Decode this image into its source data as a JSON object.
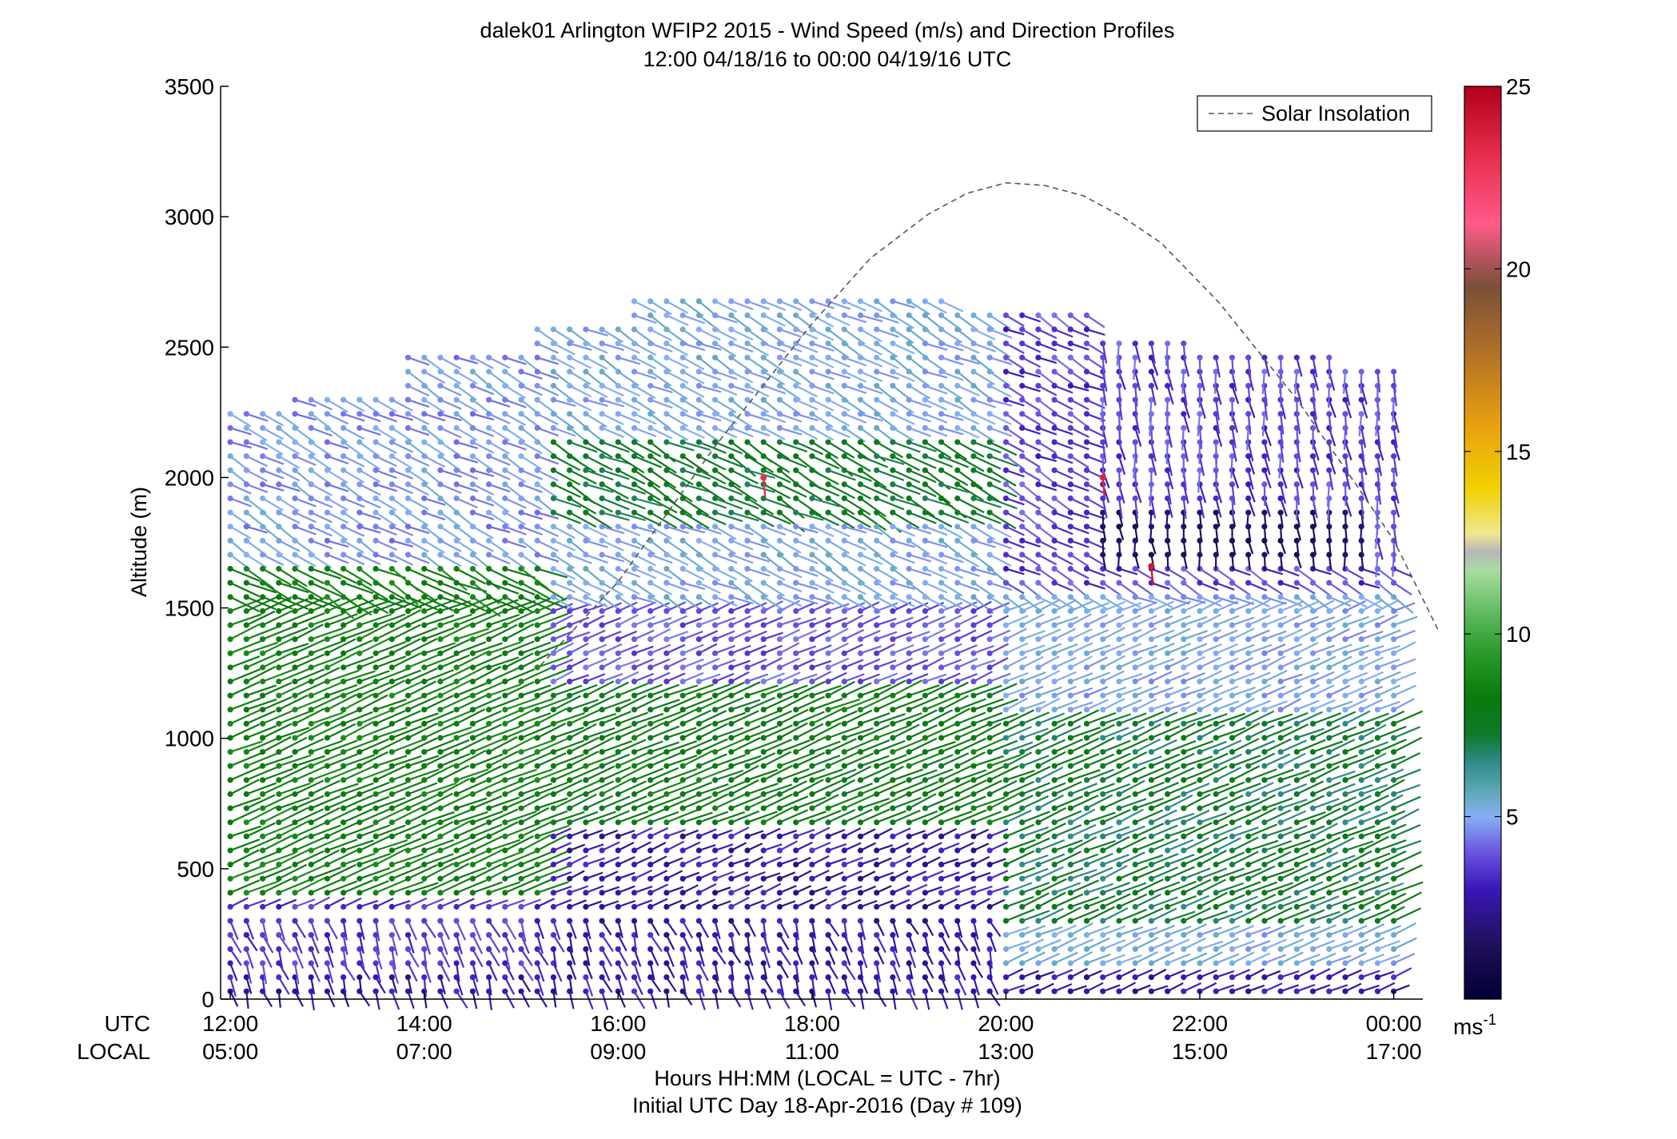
{
  "chart_data": {
    "type": "wind-barb-profile",
    "title": "dalek01 Arlington WFIP2 2015 - Wind Speed (m/s) and Direction Profiles",
    "subtitle": "12:00 04/18/16 to 00:00 04/19/16  UTC",
    "ylabel": "Altitude (m)",
    "ylim": [
      0,
      3500
    ],
    "yticks": [
      0,
      500,
      1000,
      1500,
      2000,
      2500,
      3000,
      3500
    ],
    "xlim": [
      11.9,
      24.3
    ],
    "xticks_utc": [
      "12:00",
      "14:00",
      "16:00",
      "18:00",
      "20:00",
      "22:00",
      "00:00"
    ],
    "xticks_local": [
      "05:00",
      "07:00",
      "09:00",
      "11:00",
      "13:00",
      "15:00",
      "17:00"
    ],
    "xtick_values": [
      12,
      14,
      16,
      18,
      20,
      22,
      24
    ],
    "row_label_utc": "UTC",
    "row_label_local": "LOCAL",
    "xlabel_line1": "Hours HH:MM  (LOCAL = UTC - 7hr)",
    "xlabel_line2": "Initial UTC Day 18-Apr-2016 (Day # 109)",
    "legend": {
      "entries": [
        "Solar Insolation"
      ],
      "placement": "top-right"
    },
    "colorbar": {
      "range": [
        0,
        25
      ],
      "ticks": [
        5,
        10,
        15,
        20,
        25
      ],
      "unit_label": "ms",
      "unit_exponent": "-1"
    },
    "solar_insolation": {
      "x": [
        15.2,
        16.0,
        17.0,
        18.0,
        18.6,
        19.2,
        19.6,
        20.0,
        20.4,
        20.8,
        21.2,
        21.6,
        22.2,
        23.0,
        23.6,
        24.0,
        24.5
      ],
      "y": [
        1280,
        1600,
        2120,
        2590,
        2840,
        3010,
        3090,
        3130,
        3120,
        3080,
        3000,
        2900,
        2670,
        2300,
        1980,
        1760,
        1410
      ]
    },
    "colors": {
      "axis": "#000000",
      "solar_line": "#555555"
    }
  }
}
